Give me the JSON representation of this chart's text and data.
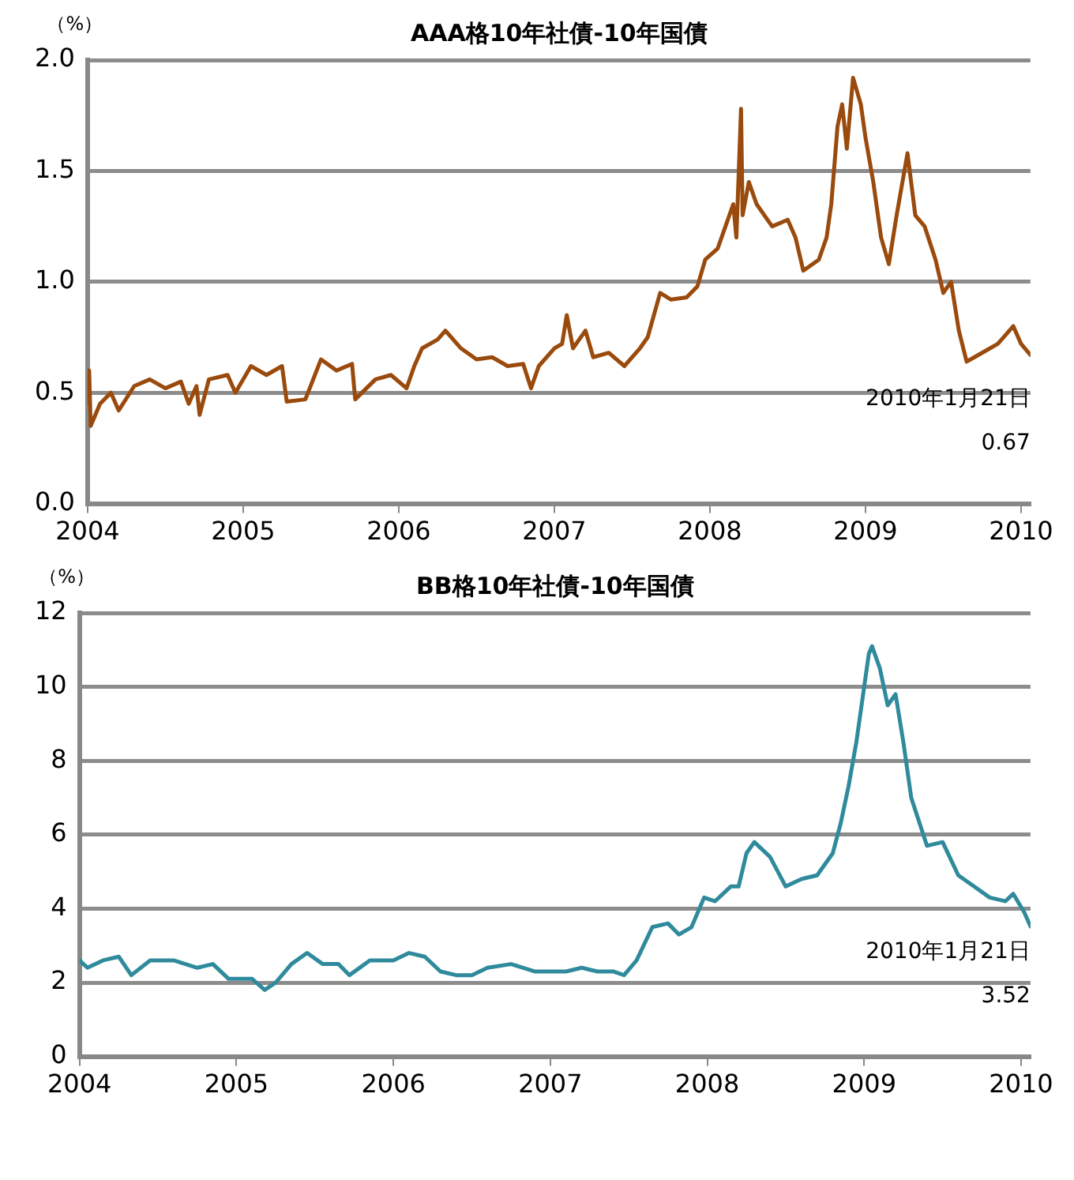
{
  "chart_data": [
    {
      "type": "line",
      "title": "AAA格10年社債-10年国債",
      "ylabel": "（%）",
      "x": [
        2004.0,
        2004.01,
        2004.02,
        2004.08,
        2004.15,
        2004.2,
        2004.3,
        2004.4,
        2004.5,
        2004.6,
        2004.65,
        2004.7,
        2004.72,
        2004.78,
        2004.9,
        2004.95,
        2005.05,
        2005.15,
        2005.25,
        2005.28,
        2005.4,
        2005.5,
        2005.6,
        2005.7,
        2005.72,
        2005.85,
        2005.95,
        2006.05,
        2006.1,
        2006.15,
        2006.25,
        2006.3,
        2006.4,
        2006.5,
        2006.6,
        2006.7,
        2006.8,
        2006.85,
        2006.9,
        2007.0,
        2007.05,
        2007.08,
        2007.12,
        2007.2,
        2007.25,
        2007.35,
        2007.45,
        2007.55,
        2007.6,
        2007.68,
        2007.75,
        2007.85,
        2007.92,
        2007.97,
        2008.05,
        2008.1,
        2008.15,
        2008.17,
        2008.2,
        2008.21,
        2008.25,
        2008.3,
        2008.4,
        2008.5,
        2008.55,
        2008.6,
        2008.7,
        2008.75,
        2008.78,
        2008.82,
        2008.85,
        2008.88,
        2008.92,
        2008.97,
        2009.0,
        2009.05,
        2009.1,
        2009.15,
        2009.2,
        2009.25,
        2009.27,
        2009.32,
        2009.38,
        2009.45,
        2009.5,
        2009.55,
        2009.6,
        2009.65,
        2009.7,
        2009.8,
        2009.85,
        2009.95,
        2010.0,
        2010.06
      ],
      "series": [
        {
          "color": "#9a4a0c",
          "values": [
            0.45,
            0.6,
            0.35,
            0.45,
            0.5,
            0.42,
            0.53,
            0.56,
            0.52,
            0.55,
            0.45,
            0.53,
            0.4,
            0.56,
            0.58,
            0.5,
            0.62,
            0.58,
            0.62,
            0.46,
            0.47,
            0.65,
            0.6,
            0.63,
            0.47,
            0.56,
            0.58,
            0.52,
            0.62,
            0.7,
            0.74,
            0.78,
            0.7,
            0.65,
            0.66,
            0.62,
            0.63,
            0.52,
            0.62,
            0.7,
            0.72,
            0.85,
            0.7,
            0.78,
            0.66,
            0.68,
            0.62,
            0.7,
            0.75,
            0.95,
            0.92,
            0.93,
            0.98,
            1.1,
            1.15,
            1.25,
            1.35,
            1.2,
            1.78,
            1.3,
            1.45,
            1.35,
            1.25,
            1.28,
            1.2,
            1.05,
            1.1,
            1.2,
            1.35,
            1.7,
            1.8,
            1.6,
            1.92,
            1.8,
            1.65,
            1.45,
            1.2,
            1.08,
            1.3,
            1.5,
            1.58,
            1.3,
            1.25,
            1.1,
            0.95,
            1.0,
            0.78,
            0.64,
            0.66,
            0.7,
            0.72,
            0.8,
            0.72,
            0.67
          ]
        }
      ],
      "xlim": [
        2004,
        2010.06
      ],
      "xticks": [
        2004,
        2005,
        2006,
        2007,
        2008,
        2009,
        2010
      ],
      "ylim": [
        0,
        2
      ],
      "yticks": [
        {
          "value": 0,
          "label": "0.0"
        },
        {
          "value": 0.5,
          "label": "0.5"
        },
        {
          "value": 1,
          "label": "1.0"
        },
        {
          "value": 1.5,
          "label": "1.5"
        },
        {
          "value": 2,
          "label": "2.0"
        }
      ],
      "grid": "y",
      "annotations": [
        "2010年1月21日",
        "0.67"
      ]
    },
    {
      "type": "line",
      "title": "BB格10年社債-10年国債",
      "ylabel": "（%）",
      "x": [
        2004.0,
        2004.05,
        2004.15,
        2004.25,
        2004.33,
        2004.45,
        2004.6,
        2004.75,
        2004.85,
        2004.95,
        2005.1,
        2005.18,
        2005.25,
        2005.35,
        2005.45,
        2005.55,
        2005.65,
        2005.72,
        2005.85,
        2006.0,
        2006.1,
        2006.2,
        2006.3,
        2006.4,
        2006.5,
        2006.6,
        2006.75,
        2006.9,
        2007.1,
        2007.2,
        2007.3,
        2007.4,
        2007.47,
        2007.55,
        2007.65,
        2007.75,
        2007.82,
        2007.9,
        2007.98,
        2008.05,
        2008.15,
        2008.2,
        2008.25,
        2008.3,
        2008.4,
        2008.5,
        2008.6,
        2008.7,
        2008.8,
        2008.85,
        2008.9,
        2008.95,
        2009.0,
        2009.03,
        2009.05,
        2009.1,
        2009.15,
        2009.2,
        2009.25,
        2009.3,
        2009.4,
        2009.5,
        2009.6,
        2009.7,
        2009.8,
        2009.9,
        2009.95,
        2010.02,
        2010.06
      ],
      "series": [
        {
          "color": "#2f8a9c",
          "values": [
            2.6,
            2.4,
            2.6,
            2.7,
            2.2,
            2.6,
            2.6,
            2.4,
            2.5,
            2.1,
            2.1,
            1.8,
            2.0,
            2.5,
            2.8,
            2.5,
            2.5,
            2.2,
            2.6,
            2.6,
            2.8,
            2.7,
            2.3,
            2.2,
            2.2,
            2.4,
            2.5,
            2.3,
            2.3,
            2.4,
            2.3,
            2.3,
            2.2,
            2.6,
            3.5,
            3.6,
            3.3,
            3.5,
            4.3,
            4.2,
            4.6,
            4.6,
            5.5,
            5.8,
            5.4,
            4.6,
            4.8,
            4.9,
            5.5,
            6.3,
            7.3,
            8.5,
            10.0,
            10.9,
            11.1,
            10.5,
            9.5,
            9.8,
            8.5,
            7.0,
            5.7,
            5.8,
            4.9,
            4.6,
            4.3,
            4.2,
            4.4,
            3.9,
            3.52
          ]
        }
      ],
      "xlim": [
        2004,
        2010.06
      ],
      "xticks": [
        2004,
        2005,
        2006,
        2007,
        2008,
        2009,
        2010
      ],
      "ylim": [
        0,
        12
      ],
      "yticks": [
        0,
        2,
        4,
        6,
        8,
        10,
        12
      ],
      "grid": "y",
      "annotations": [
        "2010年1月21日",
        "3.52"
      ]
    }
  ]
}
